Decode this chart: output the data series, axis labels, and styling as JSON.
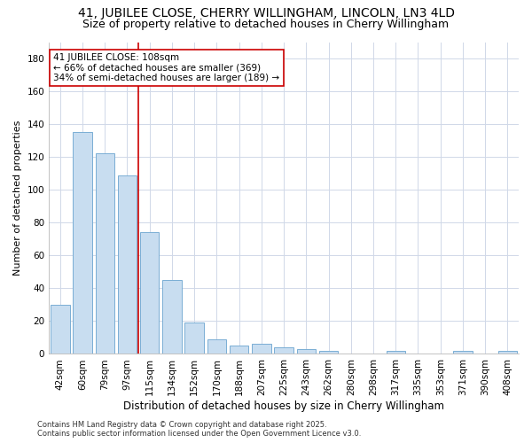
{
  "title_line1": "41, JUBILEE CLOSE, CHERRY WILLINGHAM, LINCOLN, LN3 4LD",
  "title_line2": "Size of property relative to detached houses in Cherry Willingham",
  "xlabel": "Distribution of detached houses by size in Cherry Willingham",
  "ylabel": "Number of detached properties",
  "categories": [
    "42sqm",
    "60sqm",
    "79sqm",
    "97sqm",
    "115sqm",
    "134sqm",
    "152sqm",
    "170sqm",
    "188sqm",
    "207sqm",
    "225sqm",
    "243sqm",
    "262sqm",
    "280sqm",
    "298sqm",
    "317sqm",
    "335sqm",
    "353sqm",
    "371sqm",
    "390sqm",
    "408sqm"
  ],
  "values": [
    30,
    135,
    122,
    109,
    74,
    45,
    19,
    9,
    5,
    6,
    4,
    3,
    2,
    0,
    0,
    2,
    0,
    0,
    2,
    0,
    2
  ],
  "bar_color": "#c8ddf0",
  "bar_edgecolor": "#7aaed4",
  "vline_x_index": 4,
  "vline_color": "#cc0000",
  "annotation_line1": "41 JUBILEE CLOSE: 108sqm",
  "annotation_line2": "← 66% of detached houses are smaller (369)",
  "annotation_line3": "34% of semi-detached houses are larger (189) →",
  "annotation_box_color": "white",
  "annotation_box_edgecolor": "#cc0000",
  "annotation_fontsize": 7.5,
  "ylim": [
    0,
    190
  ],
  "yticks": [
    0,
    20,
    40,
    60,
    80,
    100,
    120,
    140,
    160,
    180
  ],
  "title_fontsize": 10,
  "subtitle_fontsize": 9,
  "xlabel_fontsize": 8.5,
  "ylabel_fontsize": 8,
  "tick_fontsize": 7.5,
  "footer_text": "Contains HM Land Registry data © Crown copyright and database right 2025.\nContains public sector information licensed under the Open Government Licence v3.0.",
  "footer_fontsize": 6,
  "bg_color": "#ffffff",
  "grid_color": "#d0d8e8"
}
